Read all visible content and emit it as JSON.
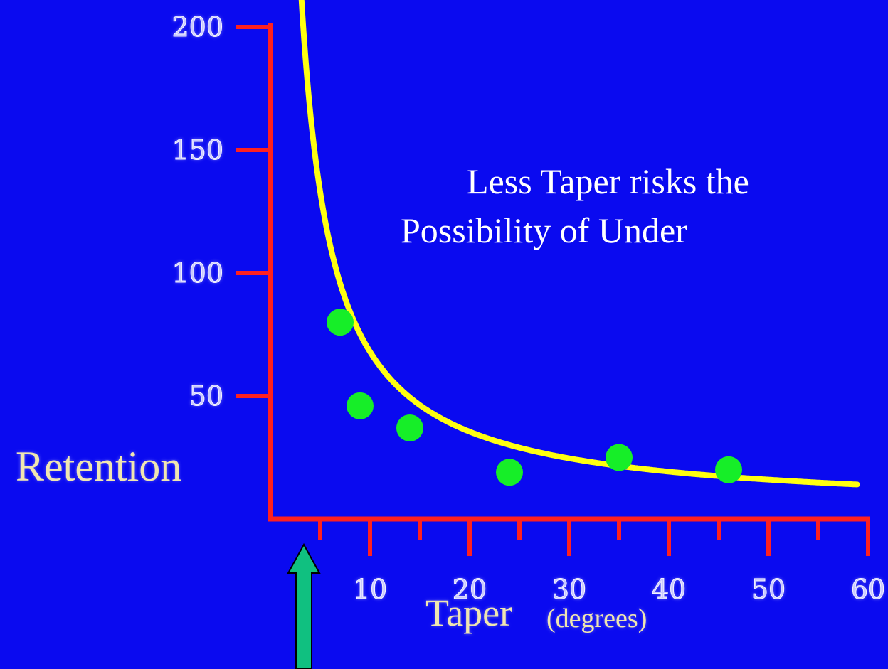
{
  "chart_data": {
    "type": "scatter",
    "y_ticks": [
      "200",
      "150",
      "100",
      "50"
    ],
    "x_ticks": [
      "10",
      "20",
      "30",
      "40",
      "50",
      "60"
    ],
    "ylabel": "Retention",
    "xlabel": "Taper",
    "xlabel_units": "(degrees)",
    "xlim": [
      0,
      60
    ],
    "ylim": [
      0,
      200
    ],
    "points": [
      {
        "x": 7,
        "y": 80
      },
      {
        "x": 9,
        "y": 46
      },
      {
        "x": 14,
        "y": 37
      },
      {
        "x": 24,
        "y": 19
      },
      {
        "x": 35,
        "y": 25
      },
      {
        "x": 46,
        "y": 20
      }
    ],
    "fit_curve": {
      "type": "hyperbolic",
      "formula": "y = 650/x + 3"
    },
    "annotation_lines": [
      "Less Taper risks the",
      "Possibility of Under"
    ],
    "colors": {
      "background": "#0a0af0",
      "axes": "#ff2020",
      "curve": "#ffff10",
      "points": "#16ee28",
      "arrow": "#10c080"
    },
    "grid": false,
    "legend": "none"
  }
}
